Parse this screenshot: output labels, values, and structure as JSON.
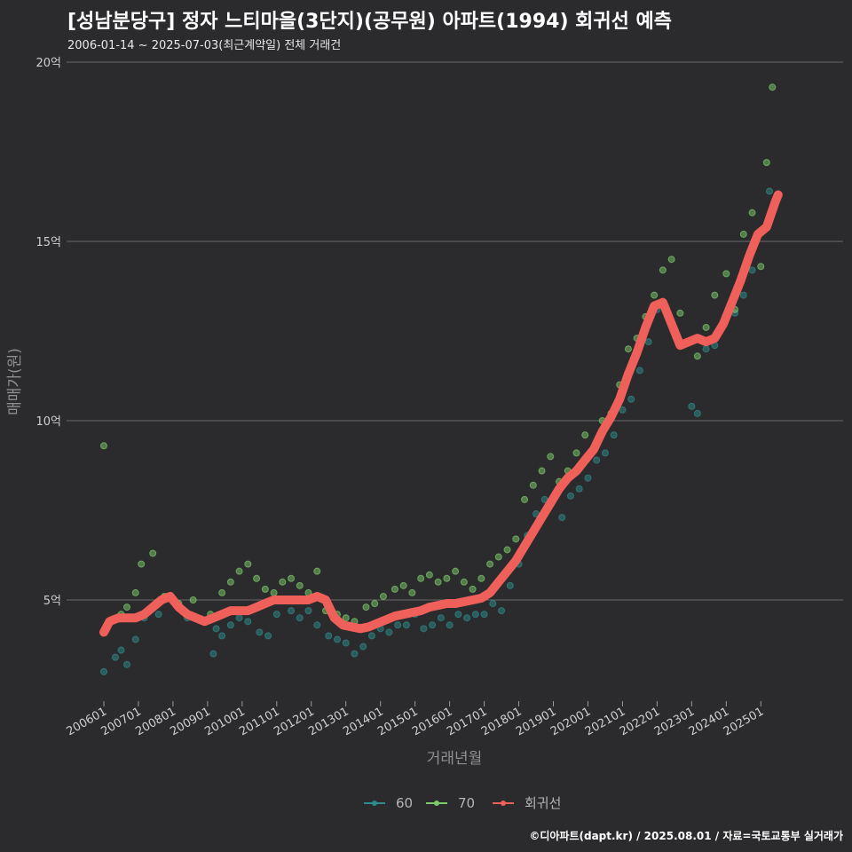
{
  "chart_data": {
    "type": "scatter",
    "title": "[성남분당구] 정자 느티마을(3단지)(공무원) 아파트(1994) 회귀선 예측",
    "subtitle": "2006-01-14 ~ 2025-07-03(최근계약일) 전체 거래건",
    "xlabel": "거래년월",
    "ylabel": "매매가(원)",
    "caption": "©디아파트(dapt.kr) / 2025.08.01 / 자료=국토교통부 실거래가",
    "x_axis": {
      "type": "date",
      "range": [
        "2006-01",
        "2025-08"
      ],
      "ticks": [
        "200601",
        "200701",
        "200801",
        "200901",
        "201001",
        "201101",
        "201201",
        "201301",
        "201401",
        "201501",
        "201601",
        "201701",
        "201801",
        "201901",
        "202001",
        "202101",
        "202201",
        "202301",
        "202401",
        "202501"
      ]
    },
    "y_axis": {
      "unit": "억",
      "range": [
        2.5,
        20.5
      ],
      "ticks": [
        {
          "value": 5,
          "label": "5억"
        },
        {
          "value": 10,
          "label": "10억"
        },
        {
          "value": 15,
          "label": "15억"
        },
        {
          "value": 20,
          "label": "20억"
        }
      ]
    },
    "grid": "horizontal",
    "legend_position": "bottom",
    "colors": {
      "60": "#2e8b8b",
      "70": "#7ccb6a",
      "회귀선": "#f0605a",
      "background": "#2b2b2d",
      "grid": "#6a6a6a"
    },
    "series": [
      {
        "name": "60",
        "kind": "points",
        "x": [
          "2006-01",
          "2006-05",
          "2006-07",
          "2006-09",
          "2006-12",
          "2007-03",
          "2007-08",
          "2008-04",
          "2008-06",
          "2008-12",
          "2009-03",
          "2009-04",
          "2009-06",
          "2009-09",
          "2009-12",
          "2010-03",
          "2010-07",
          "2010-10",
          "2011-01",
          "2011-06",
          "2011-09",
          "2011-12",
          "2012-03",
          "2012-07",
          "2012-10",
          "2013-01",
          "2013-04",
          "2013-07",
          "2013-10",
          "2014-01",
          "2014-04",
          "2014-07",
          "2014-10",
          "2015-01",
          "2015-04",
          "2015-07",
          "2015-10",
          "2016-01",
          "2016-04",
          "2016-07",
          "2016-10",
          "2017-01",
          "2017-04",
          "2017-07",
          "2017-10",
          "2018-01",
          "2018-04",
          "2018-07",
          "2018-10",
          "2019-01",
          "2019-04",
          "2019-07",
          "2019-10",
          "2020-01",
          "2020-04",
          "2020-07",
          "2020-10",
          "2021-01",
          "2021-04",
          "2021-07",
          "2021-10",
          "2022-01",
          "2022-07",
          "2023-01",
          "2023-03",
          "2023-06",
          "2023-09",
          "2024-01",
          "2024-04",
          "2024-07",
          "2024-10",
          "2025-01",
          "2025-04"
        ],
        "y": [
          3.0,
          3.4,
          3.6,
          3.2,
          3.9,
          4.5,
          4.6,
          4.7,
          4.5,
          4.4,
          3.5,
          4.2,
          4.0,
          4.3,
          4.5,
          4.4,
          4.1,
          4.0,
          4.6,
          4.7,
          4.5,
          4.7,
          4.3,
          4.0,
          3.9,
          3.8,
          3.5,
          3.7,
          4.0,
          4.2,
          4.1,
          4.3,
          4.3,
          4.6,
          4.2,
          4.3,
          4.5,
          4.3,
          4.6,
          4.5,
          4.6,
          4.6,
          4.9,
          4.7,
          5.4,
          6.0,
          6.8,
          7.4,
          7.8,
          7.8,
          7.3,
          7.9,
          8.1,
          8.4,
          8.9,
          9.1,
          9.6,
          10.3,
          10.6,
          11.4,
          12.2,
          13.1,
          12.5,
          10.4,
          10.2,
          12.0,
          12.1,
          12.9,
          13.0,
          13.5,
          14.2,
          15.3,
          16.4
        ]
      },
      {
        "name": "70",
        "kind": "points",
        "x": [
          "2006-01",
          "2006-07",
          "2006-09",
          "2006-12",
          "2007-02",
          "2007-06",
          "2007-10",
          "2008-03",
          "2008-08",
          "2009-02",
          "2009-06",
          "2009-09",
          "2009-12",
          "2010-03",
          "2010-06",
          "2010-09",
          "2010-12",
          "2011-03",
          "2011-06",
          "2011-09",
          "2011-12",
          "2012-03",
          "2012-06",
          "2012-10",
          "2013-01",
          "2013-04",
          "2013-08",
          "2013-11",
          "2014-02",
          "2014-06",
          "2014-09",
          "2014-12",
          "2015-03",
          "2015-06",
          "2015-09",
          "2015-12",
          "2016-03",
          "2016-06",
          "2016-09",
          "2016-12",
          "2017-03",
          "2017-06",
          "2017-09",
          "2017-12",
          "2018-03",
          "2018-06",
          "2018-09",
          "2018-12",
          "2019-03",
          "2019-06",
          "2019-09",
          "2019-12",
          "2020-03",
          "2020-06",
          "2020-09",
          "2020-12",
          "2021-03",
          "2021-06",
          "2021-09",
          "2021-12",
          "2022-03",
          "2022-06",
          "2022-09",
          "2023-03",
          "2023-06",
          "2023-09",
          "2024-01",
          "2024-04",
          "2024-07",
          "2024-10",
          "2025-01",
          "2025-03",
          "2025-05"
        ],
        "y": [
          9.3,
          4.6,
          4.8,
          5.2,
          6.0,
          6.3,
          5.1,
          4.9,
          5.0,
          4.6,
          5.2,
          5.5,
          5.8,
          6.0,
          5.6,
          5.3,
          5.2,
          5.5,
          5.6,
          5.4,
          5.2,
          5.8,
          4.7,
          4.6,
          4.5,
          4.4,
          4.8,
          4.9,
          5.1,
          5.3,
          5.4,
          5.2,
          5.6,
          5.7,
          5.5,
          5.6,
          5.8,
          5.5,
          5.3,
          5.6,
          6.0,
          6.2,
          6.4,
          6.7,
          7.8,
          8.2,
          8.6,
          9.0,
          8.3,
          8.6,
          9.1,
          9.6,
          9.2,
          10.0,
          10.2,
          11.0,
          12.0,
          12.3,
          12.9,
          13.5,
          14.2,
          14.5,
          13.0,
          11.8,
          12.6,
          13.5,
          14.1,
          13.1,
          15.2,
          15.8,
          14.3,
          17.2,
          19.3
        ]
      },
      {
        "name": "회귀선",
        "kind": "line",
        "x": [
          "2006-01",
          "2006-03",
          "2006-06",
          "2006-09",
          "2006-12",
          "2007-03",
          "2007-06",
          "2007-09",
          "2007-12",
          "2008-03",
          "2008-06",
          "2008-09",
          "2008-12",
          "2009-03",
          "2009-06",
          "2009-09",
          "2009-12",
          "2010-03",
          "2010-06",
          "2010-09",
          "2010-12",
          "2011-03",
          "2011-06",
          "2011-09",
          "2011-12",
          "2012-03",
          "2012-06",
          "2012-09",
          "2012-12",
          "2013-03",
          "2013-06",
          "2013-09",
          "2013-12",
          "2014-03",
          "2014-06",
          "2014-09",
          "2014-12",
          "2015-03",
          "2015-06",
          "2015-09",
          "2015-12",
          "2016-03",
          "2016-06",
          "2016-09",
          "2016-12",
          "2017-03",
          "2017-06",
          "2017-09",
          "2017-12",
          "2018-03",
          "2018-06",
          "2018-09",
          "2018-12",
          "2019-03",
          "2019-06",
          "2019-09",
          "2019-12",
          "2020-03",
          "2020-06",
          "2020-09",
          "2020-12",
          "2021-03",
          "2021-06",
          "2021-09",
          "2021-12",
          "2022-03",
          "2022-06",
          "2022-09",
          "2022-12",
          "2023-03",
          "2023-06",
          "2023-09",
          "2023-12",
          "2024-03",
          "2024-06",
          "2024-09",
          "2024-12",
          "2025-03",
          "2025-06",
          "2025-07"
        ],
        "y": [
          4.1,
          4.4,
          4.5,
          4.5,
          4.5,
          4.6,
          4.8,
          5.0,
          5.1,
          4.8,
          4.6,
          4.5,
          4.4,
          4.5,
          4.6,
          4.7,
          4.7,
          4.7,
          4.8,
          4.9,
          5.0,
          5.0,
          5.0,
          5.0,
          5.0,
          5.1,
          5.0,
          4.5,
          4.3,
          4.25,
          4.2,
          4.25,
          4.35,
          4.45,
          4.55,
          4.6,
          4.65,
          4.7,
          4.8,
          4.85,
          4.9,
          4.9,
          4.95,
          5.0,
          5.05,
          5.2,
          5.5,
          5.8,
          6.1,
          6.5,
          6.9,
          7.3,
          7.7,
          8.1,
          8.4,
          8.6,
          8.9,
          9.2,
          9.7,
          10.1,
          10.6,
          11.3,
          11.9,
          12.6,
          13.2,
          13.3,
          12.7,
          12.1,
          12.2,
          12.3,
          12.2,
          12.3,
          12.7,
          13.3,
          13.9,
          14.6,
          15.2,
          15.4,
          16.1,
          16.3
        ]
      }
    ]
  }
}
